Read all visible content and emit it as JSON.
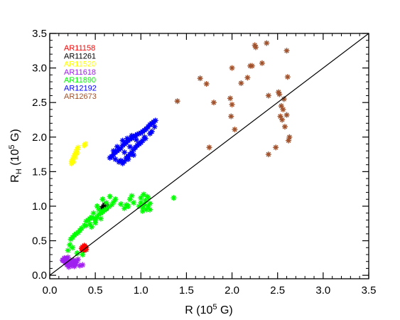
{
  "chart_data": {
    "type": "scatter",
    "xlabel": {
      "base": "R (10",
      "sup": "5",
      "tail": " G)"
    },
    "ylabel": {
      "base": "R",
      "sub": "H",
      "tail1": " (10",
      "sup": "5",
      "tail2": " G)"
    },
    "xlim": [
      0.0,
      3.5
    ],
    "ylim": [
      -0.05,
      3.5
    ],
    "xticks": [
      "0.0",
      "0.5",
      "1.0",
      "1.5",
      "2.0",
      "2.5",
      "3.0",
      "3.5"
    ],
    "yticks": [
      "0.0",
      "0.5",
      "1.0",
      "1.5",
      "2.0",
      "2.5",
      "3.0",
      "3.5"
    ],
    "marker": "*",
    "grid": false,
    "legend_position": "top-left",
    "reference_line": {
      "from": [
        0.0,
        0.0
      ],
      "to": [
        3.5,
        3.5
      ],
      "color": "#000000"
    },
    "series": [
      {
        "name": "AR11158",
        "color": "#ff0000",
        "points": [
          [
            0.36,
            0.38
          ],
          [
            0.37,
            0.4
          ],
          [
            0.38,
            0.39
          ],
          [
            0.39,
            0.41
          ],
          [
            0.37,
            0.37
          ],
          [
            0.36,
            0.41
          ],
          [
            0.38,
            0.42
          ],
          [
            0.39,
            0.38
          ],
          [
            0.4,
            0.4
          ],
          [
            0.35,
            0.39
          ],
          [
            0.37,
            0.36
          ],
          [
            0.38,
            0.43
          ],
          [
            0.4,
            0.37
          ],
          [
            0.36,
            0.36
          ]
        ]
      },
      {
        "name": "AR11261",
        "color": "#000000",
        "points": [
          [
            0.57,
            0.94
          ],
          [
            0.58,
            0.96
          ],
          [
            0.59,
            0.97
          ],
          [
            0.6,
            0.98
          ],
          [
            0.61,
            0.99
          ],
          [
            0.62,
            1.01
          ],
          [
            0.58,
            0.93
          ],
          [
            0.6,
            0.95
          ],
          [
            0.61,
            0.96
          ],
          [
            0.59,
            0.99
          ],
          [
            0.62,
            0.97
          ],
          [
            0.63,
            1.0
          ],
          [
            0.57,
            0.97
          ],
          [
            0.6,
            1.02
          ]
        ]
      },
      {
        "name": "AR11520",
        "color": "#ffff00",
        "points": [
          [
            0.24,
            1.65
          ],
          [
            0.25,
            1.67
          ],
          [
            0.26,
            1.7
          ],
          [
            0.27,
            1.73
          ],
          [
            0.28,
            1.76
          ],
          [
            0.29,
            1.79
          ],
          [
            0.3,
            1.82
          ],
          [
            0.24,
            1.62
          ],
          [
            0.26,
            1.64
          ],
          [
            0.28,
            1.71
          ],
          [
            0.31,
            1.85
          ],
          [
            0.3,
            1.77
          ],
          [
            0.39,
            1.9
          ],
          [
            0.38,
            1.88
          ]
        ]
      },
      {
        "name": "AR11618",
        "color": "#a020f0",
        "points": [
          [
            0.14,
            0.22
          ],
          [
            0.15,
            0.21
          ],
          [
            0.16,
            0.25
          ],
          [
            0.17,
            0.18
          ],
          [
            0.18,
            0.23
          ],
          [
            0.19,
            0.15
          ],
          [
            0.2,
            0.2
          ],
          [
            0.21,
            0.12
          ],
          [
            0.22,
            0.18
          ],
          [
            0.23,
            0.21
          ],
          [
            0.24,
            0.14
          ],
          [
            0.25,
            0.17
          ],
          [
            0.26,
            0.22
          ],
          [
            0.27,
            0.13
          ],
          [
            0.28,
            0.19
          ],
          [
            0.29,
            0.16
          ],
          [
            0.3,
            0.21
          ],
          [
            0.31,
            0.23
          ],
          [
            0.33,
            0.14
          ],
          [
            0.36,
            0.15
          ],
          [
            0.17,
            0.24
          ],
          [
            0.2,
            0.26
          ]
        ]
      },
      {
        "name": "AR11890",
        "color": "#00ff00",
        "points": [
          [
            0.2,
            0.36
          ],
          [
            0.22,
            0.44
          ],
          [
            0.23,
            0.52
          ],
          [
            0.25,
            0.55
          ],
          [
            0.27,
            0.58
          ],
          [
            0.29,
            0.6
          ],
          [
            0.31,
            0.62
          ],
          [
            0.33,
            0.65
          ],
          [
            0.35,
            0.68
          ],
          [
            0.38,
            0.72
          ],
          [
            0.4,
            0.78
          ],
          [
            0.42,
            0.8
          ],
          [
            0.44,
            0.82
          ],
          [
            0.46,
            0.84
          ],
          [
            0.48,
            0.83
          ],
          [
            0.5,
            0.8
          ],
          [
            0.52,
            0.84
          ],
          [
            0.54,
            0.88
          ],
          [
            0.56,
            0.9
          ],
          [
            0.58,
            0.92
          ],
          [
            0.6,
            0.94
          ],
          [
            0.62,
            0.96
          ],
          [
            0.65,
            0.99
          ],
          [
            0.68,
            1.02
          ],
          [
            0.7,
            1.06
          ],
          [
            0.72,
            1.1
          ],
          [
            0.66,
            1.14
          ],
          [
            0.52,
            1.0
          ],
          [
            0.62,
            1.05
          ],
          [
            0.5,
            0.76
          ],
          [
            0.44,
            0.74
          ],
          [
            0.48,
            0.9
          ],
          [
            0.54,
            0.95
          ],
          [
            0.58,
            1.1
          ],
          [
            0.25,
            0.4
          ],
          [
            0.3,
            0.32
          ],
          [
            0.36,
            0.3
          ],
          [
            0.4,
            0.72
          ],
          [
            0.56,
            0.82
          ],
          [
            0.46,
            0.7
          ],
          [
            0.98,
            1.0
          ],
          [
            1.0,
            1.05
          ],
          [
            1.02,
            0.98
          ],
          [
            1.04,
            1.02
          ],
          [
            1.05,
            1.08
          ],
          [
            1.06,
            0.95
          ],
          [
            1.08,
            1.0
          ],
          [
            1.1,
            1.04
          ],
          [
            1.0,
            1.12
          ],
          [
            1.03,
            1.17
          ],
          [
            1.07,
            1.14
          ],
          [
            1.02,
            0.93
          ],
          [
            1.08,
            1.12
          ],
          [
            1.1,
            0.95
          ],
          [
            0.92,
            1.05
          ],
          [
            0.88,
            1.1
          ],
          [
            0.86,
            1.0
          ],
          [
            0.84,
            1.02
          ],
          [
            1.36,
            1.12
          ],
          [
            0.9,
            1.15
          ],
          [
            0.82,
            0.97
          ],
          [
            0.78,
            1.03
          ]
        ]
      },
      {
        "name": "AR12192",
        "color": "#0000ff",
        "points": [
          [
            0.66,
            1.7
          ],
          [
            0.68,
            1.72
          ],
          [
            0.7,
            1.75
          ],
          [
            0.72,
            1.78
          ],
          [
            0.74,
            1.8
          ],
          [
            0.76,
            1.82
          ],
          [
            0.78,
            1.84
          ],
          [
            0.8,
            1.88
          ],
          [
            0.82,
            1.9
          ],
          [
            0.84,
            1.92
          ],
          [
            0.86,
            1.95
          ],
          [
            0.88,
            1.97
          ],
          [
            0.9,
            1.98
          ],
          [
            0.92,
            2.0
          ],
          [
            0.94,
            2.02
          ],
          [
            0.96,
            2.04
          ],
          [
            0.98,
            2.05
          ],
          [
            1.0,
            2.06
          ],
          [
            1.02,
            2.08
          ],
          [
            1.04,
            2.1
          ],
          [
            1.06,
            2.12
          ],
          [
            1.08,
            2.15
          ],
          [
            1.1,
            2.18
          ],
          [
            1.12,
            2.2
          ],
          [
            1.14,
            2.22
          ],
          [
            1.16,
            2.24
          ],
          [
            0.78,
            1.66
          ],
          [
            0.8,
            1.62
          ],
          [
            0.82,
            1.65
          ],
          [
            0.84,
            1.7
          ],
          [
            0.86,
            1.72
          ],
          [
            0.88,
            1.75
          ],
          [
            0.9,
            1.78
          ],
          [
            0.92,
            1.82
          ],
          [
            0.94,
            1.85
          ],
          [
            0.96,
            1.88
          ],
          [
            0.98,
            1.9
          ],
          [
            1.0,
            1.92
          ],
          [
            1.02,
            1.95
          ],
          [
            1.04,
            2.0
          ],
          [
            0.72,
            1.68
          ],
          [
            0.76,
            1.64
          ],
          [
            0.7,
            1.8
          ],
          [
            0.74,
            1.86
          ],
          [
            0.8,
            1.95
          ],
          [
            0.85,
            1.98
          ],
          [
            0.9,
            2.02
          ],
          [
            0.95,
            1.96
          ],
          [
            1.05,
            1.98
          ],
          [
            1.1,
            2.05
          ],
          [
            1.15,
            2.15
          ],
          [
            1.12,
            2.08
          ],
          [
            0.88,
            1.86
          ],
          [
            0.92,
            1.74
          ],
          [
            0.86,
            1.68
          ],
          [
            0.82,
            1.78
          ]
        ]
      },
      {
        "name": "AR12673",
        "color": "#a0522d",
        "points": [
          [
            1.4,
            2.52
          ],
          [
            1.65,
            2.85
          ],
          [
            1.72,
            2.77
          ],
          [
            1.75,
            1.85
          ],
          [
            1.8,
            2.5
          ],
          [
            1.98,
            2.56
          ],
          [
            1.99,
            2.3
          ],
          [
            2.0,
            2.47
          ],
          [
            2.0,
            3.0
          ],
          [
            2.03,
            2.11
          ],
          [
            2.1,
            2.78
          ],
          [
            2.17,
            2.86
          ],
          [
            2.2,
            3.03
          ],
          [
            2.22,
            3.03
          ],
          [
            2.25,
            3.33
          ],
          [
            2.26,
            3.3
          ],
          [
            2.33,
            3.07
          ],
          [
            2.38,
            3.36
          ],
          [
            2.4,
            2.6
          ],
          [
            2.4,
            1.75
          ],
          [
            2.48,
            1.85
          ],
          [
            2.51,
            2.65
          ],
          [
            2.52,
            2.62
          ],
          [
            2.53,
            2.3
          ],
          [
            2.54,
            2.45
          ],
          [
            2.55,
            2.25
          ],
          [
            2.56,
            2.4
          ],
          [
            2.57,
            2.55
          ],
          [
            2.58,
            2.15
          ],
          [
            2.6,
            3.25
          ],
          [
            2.61,
            2.87
          ],
          [
            2.62,
            1.95
          ],
          [
            2.63,
            2.0
          ],
          [
            2.6,
            2.32
          ]
        ]
      }
    ]
  }
}
